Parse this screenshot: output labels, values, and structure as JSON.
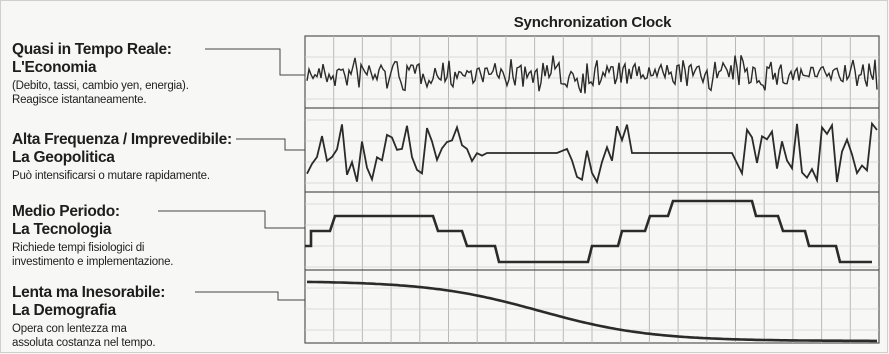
{
  "title": "Synchronization Clock",
  "rows": [
    {
      "title_line1": "Quasi in Tempo Reale:",
      "title_line2": "L'Economia",
      "desc_line1": "(Debito, tassi, cambio yen, energia).",
      "desc_line2": "Reagisce istantaneamente.",
      "signal": "high-frequency-noise"
    },
    {
      "title_line1": "Alta Frequenza / Imprevedibile:",
      "title_line2": "La Geopolitica",
      "desc_line1": "Può intensificarsi o mutare rapidamente.",
      "desc_line2": "",
      "signal": "intermittent-bursts"
    },
    {
      "title_line1": "Medio Periodo:",
      "title_line2": "La Tecnologia",
      "desc_line1": "Richiede tempi fisiologici di",
      "desc_line2": "investimento e implementazione.",
      "signal": "step-function"
    },
    {
      "title_line1": "Lenta ma Inesorabile:",
      "title_line2": "La Demografia",
      "desc_line1": "Opera con lentezza ma",
      "desc_line2": "assoluta costanza nel tempo.",
      "signal": "slow-decline"
    }
  ],
  "colors": {
    "background": "#f7f7f5",
    "text": "#1e1e1e",
    "grid": "#b9b9b9",
    "signal": "#2b2b2b",
    "border": "#555555"
  }
}
